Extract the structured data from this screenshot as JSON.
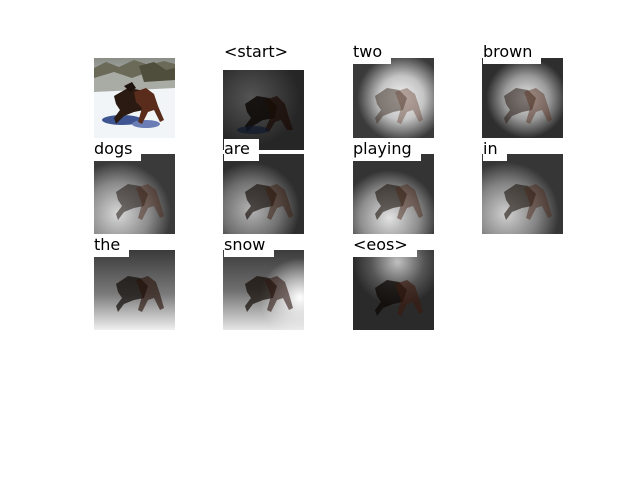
{
  "figure": {
    "words": [
      "<start>",
      "two",
      "brown",
      "dogs",
      "are",
      "playing",
      "in",
      "the",
      "snow",
      "<eos>"
    ],
    "panels": [
      {
        "name": "original-image"
      },
      {
        "word_index": 0,
        "attention_focus": "diffuse-upper-left",
        "brightness": 0.25
      },
      {
        "word_index": 1,
        "attention_focus": "center-right",
        "brightness": 0.95
      },
      {
        "word_index": 2,
        "attention_focus": "center-right",
        "brightness": 0.8
      },
      {
        "word_index": 3,
        "attention_focus": "lower-left",
        "brightness": 0.7
      },
      {
        "word_index": 4,
        "attention_focus": "lower-left",
        "brightness": 0.55
      },
      {
        "word_index": 5,
        "attention_focus": "lower-center",
        "brightness": 0.75
      },
      {
        "word_index": 6,
        "attention_focus": "lower-left",
        "brightness": 0.7
      },
      {
        "word_index": 7,
        "attention_focus": "bottom",
        "brightness": 0.85
      },
      {
        "word_index": 8,
        "attention_focus": "right-and-bottom",
        "brightness": 0.9
      },
      {
        "word_index": 9,
        "attention_focus": "top-center",
        "brightness": 0.4
      }
    ]
  }
}
